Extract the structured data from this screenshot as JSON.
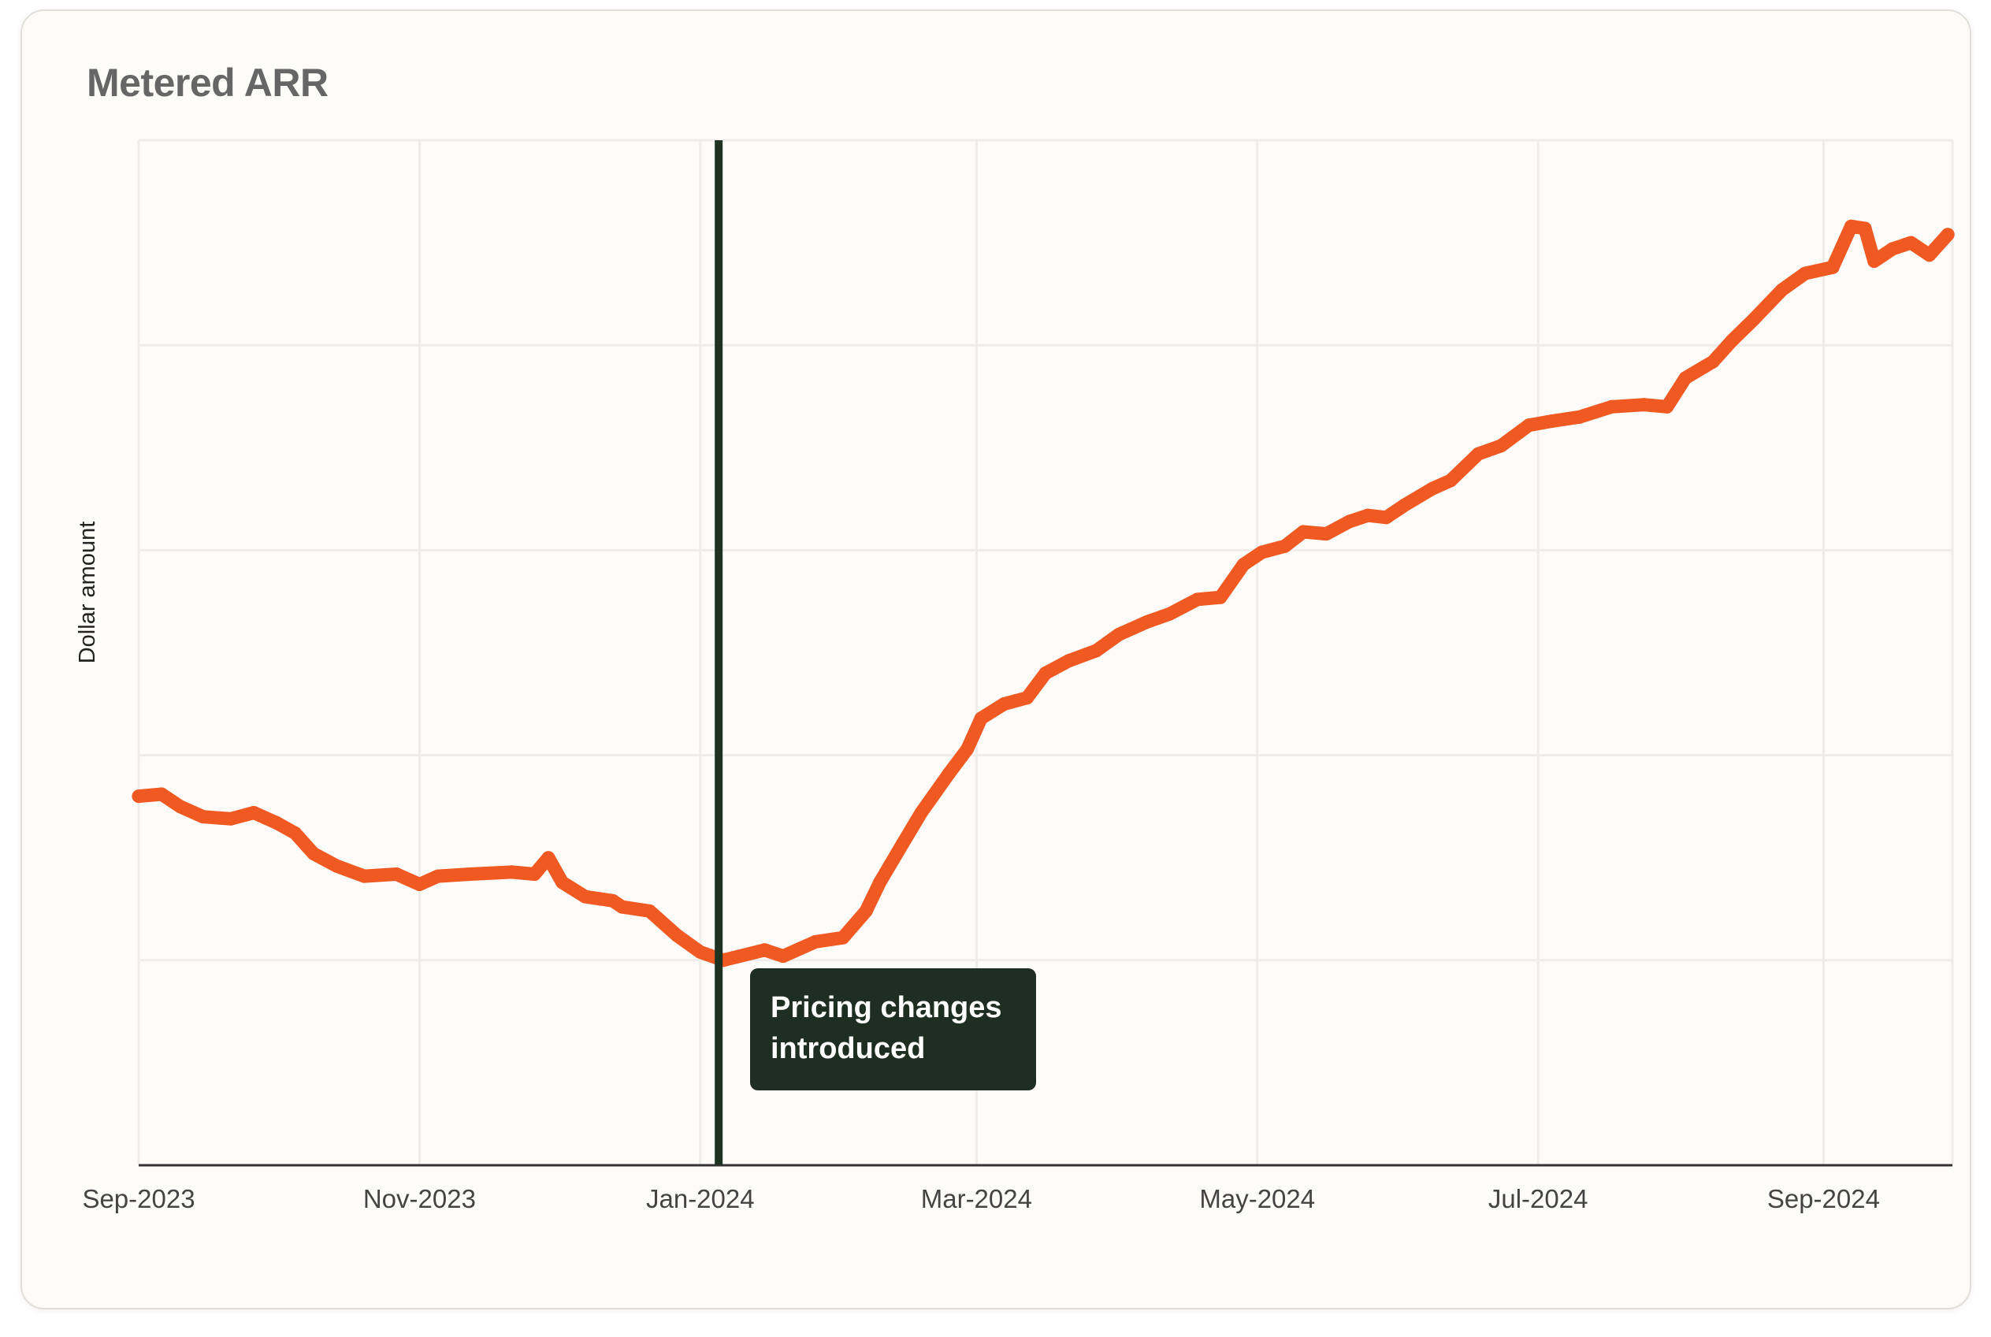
{
  "chart_data": {
    "type": "line",
    "title": "Metered ARR",
    "xlabel": "",
    "ylabel": "Dollar amount",
    "xlim": [
      "2023-09-01",
      "2024-09-29"
    ],
    "ylim": [
      0,
      5
    ],
    "y_tick_labels_shown": false,
    "grid": true,
    "x_ticks": [
      {
        "date": "2023-09-01",
        "label": "Sep-2023"
      },
      {
        "date": "2023-11-01",
        "label": "Nov-2023"
      },
      {
        "date": "2024-01-01",
        "label": "Jan-2024"
      },
      {
        "date": "2024-03-01",
        "label": "Mar-2024"
      },
      {
        "date": "2024-05-01",
        "label": "May-2024"
      },
      {
        "date": "2024-07-01",
        "label": "Jul-2024"
      },
      {
        "date": "2024-09-01",
        "label": "Sep-2024"
      }
    ],
    "y_gridlines": [
      0,
      1,
      2,
      3,
      4,
      5
    ],
    "series": [
      {
        "color": "#f05a22",
        "points": [
          [
            "2023-09-01",
            1.8
          ],
          [
            "2023-09-06",
            1.81
          ],
          [
            "2023-09-10",
            1.75
          ],
          [
            "2023-09-15",
            1.7
          ],
          [
            "2023-09-21",
            1.69
          ],
          [
            "2023-09-26",
            1.72
          ],
          [
            "2023-10-01",
            1.67
          ],
          [
            "2023-10-05",
            1.62
          ],
          [
            "2023-10-09",
            1.52
          ],
          [
            "2023-10-14",
            1.46
          ],
          [
            "2023-10-20",
            1.41
          ],
          [
            "2023-10-27",
            1.42
          ],
          [
            "2023-11-01",
            1.37
          ],
          [
            "2023-11-05",
            1.41
          ],
          [
            "2023-11-12",
            1.42
          ],
          [
            "2023-11-21",
            1.43
          ],
          [
            "2023-11-26",
            1.42
          ],
          [
            "2023-11-29",
            1.5
          ],
          [
            "2023-12-02",
            1.38
          ],
          [
            "2023-12-07",
            1.31
          ],
          [
            "2023-12-13",
            1.29
          ],
          [
            "2023-12-15",
            1.26
          ],
          [
            "2023-12-21",
            1.24
          ],
          [
            "2023-12-27",
            1.12
          ],
          [
            "2024-01-01",
            1.04
          ],
          [
            "2024-01-06",
            1.0
          ],
          [
            "2024-01-15",
            1.05
          ],
          [
            "2024-01-19",
            1.02
          ],
          [
            "2024-01-26",
            1.09
          ],
          [
            "2024-02-01",
            1.11
          ],
          [
            "2024-02-06",
            1.24
          ],
          [
            "2024-02-09",
            1.38
          ],
          [
            "2024-02-14",
            1.57
          ],
          [
            "2024-02-18",
            1.72
          ],
          [
            "2024-02-24",
            1.91
          ],
          [
            "2024-02-28",
            2.03
          ],
          [
            "2024-03-02",
            2.18
          ],
          [
            "2024-03-07",
            2.25
          ],
          [
            "2024-03-12",
            2.28
          ],
          [
            "2024-03-16",
            2.4
          ],
          [
            "2024-03-21",
            2.46
          ],
          [
            "2024-03-27",
            2.51
          ],
          [
            "2024-04-01",
            2.59
          ],
          [
            "2024-04-07",
            2.65
          ],
          [
            "2024-04-12",
            2.69
          ],
          [
            "2024-04-18",
            2.76
          ],
          [
            "2024-04-23",
            2.77
          ],
          [
            "2024-04-28",
            2.93
          ],
          [
            "2024-05-02",
            2.99
          ],
          [
            "2024-05-07",
            3.02
          ],
          [
            "2024-05-11",
            3.09
          ],
          [
            "2024-05-16",
            3.08
          ],
          [
            "2024-05-21",
            3.14
          ],
          [
            "2024-05-25",
            3.17
          ],
          [
            "2024-05-29",
            3.16
          ],
          [
            "2024-06-02",
            3.22
          ],
          [
            "2024-06-08",
            3.3
          ],
          [
            "2024-06-12",
            3.34
          ],
          [
            "2024-06-18",
            3.47
          ],
          [
            "2024-06-23",
            3.51
          ],
          [
            "2024-06-29",
            3.61
          ],
          [
            "2024-07-04",
            3.63
          ],
          [
            "2024-07-10",
            3.65
          ],
          [
            "2024-07-17",
            3.7
          ],
          [
            "2024-07-24",
            3.71
          ],
          [
            "2024-07-29",
            3.7
          ],
          [
            "2024-08-02",
            3.84
          ],
          [
            "2024-08-08",
            3.92
          ],
          [
            "2024-08-12",
            4.02
          ],
          [
            "2024-08-17",
            4.13
          ],
          [
            "2024-08-23",
            4.27
          ],
          [
            "2024-08-28",
            4.35
          ],
          [
            "2024-09-03",
            4.38
          ],
          [
            "2024-09-07",
            4.58
          ],
          [
            "2024-09-10",
            4.57
          ],
          [
            "2024-09-12",
            4.41
          ],
          [
            "2024-09-16",
            4.47
          ],
          [
            "2024-09-20",
            4.5
          ],
          [
            "2024-09-24",
            4.44
          ],
          [
            "2024-09-28",
            4.54
          ]
        ]
      }
    ],
    "annotations": [
      {
        "date": "2024-01-05",
        "text_line1": "Pricing changes",
        "text_line2": "introduced",
        "line_color": "#1e3322",
        "box_color": "#1f2e22"
      }
    ]
  }
}
